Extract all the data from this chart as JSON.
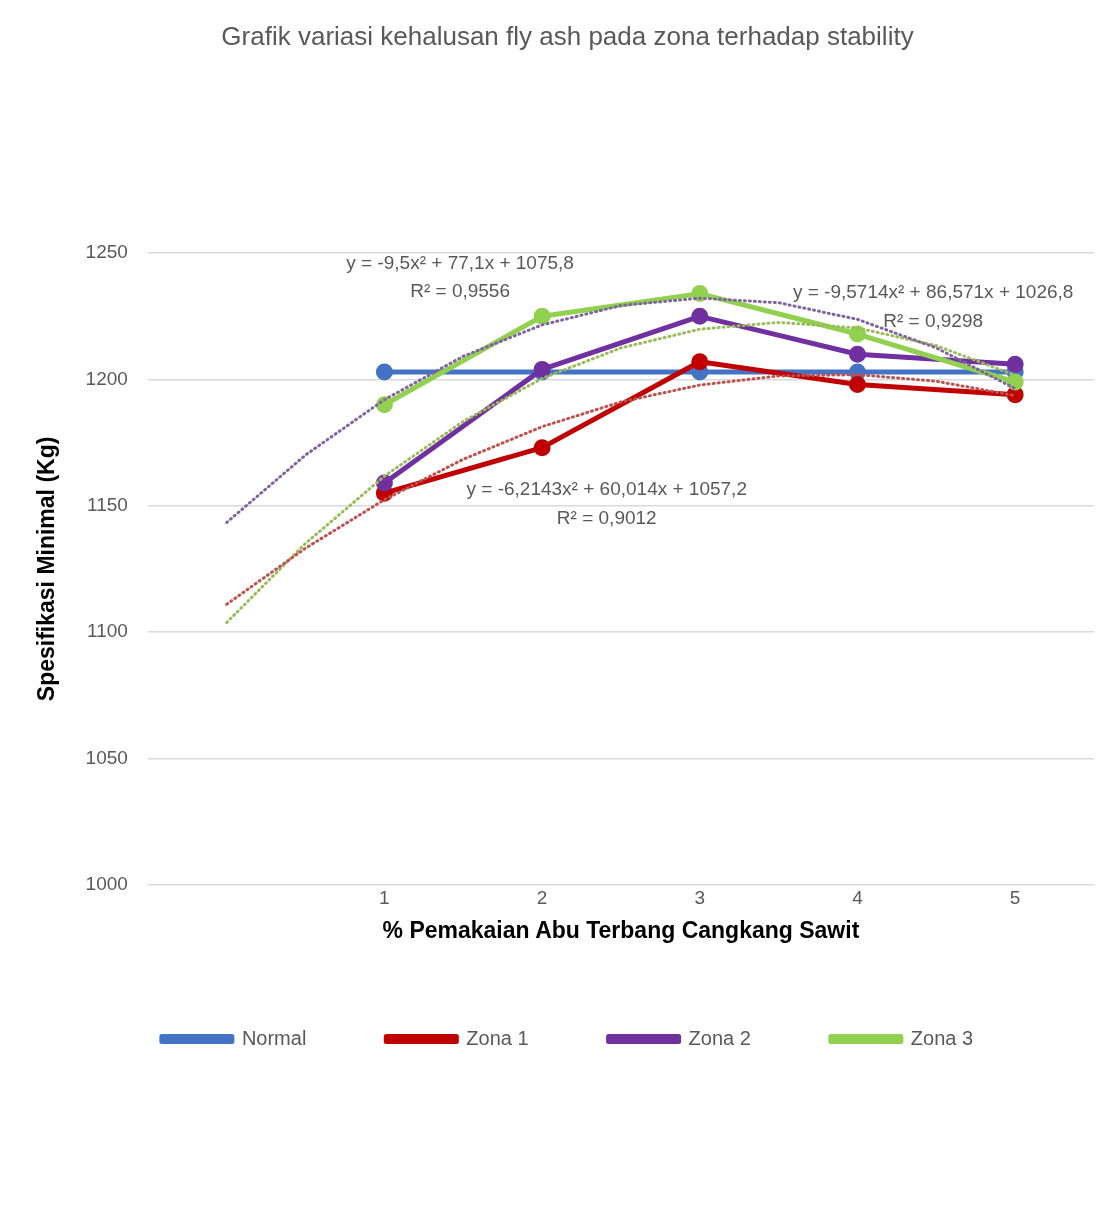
{
  "chart_data": {
    "type": "line",
    "title": "Grafik variasi kehalusan fly ash pada zona terhadap stability",
    "xlabel": "% Pemakaian Abu Terbang Cangkang Sawit",
    "ylabel": "Spesifikasi Minimal (Kg)",
    "xlim": [
      -0.5,
      5.5
    ],
    "xticks": [
      1,
      2,
      3,
      4,
      5
    ],
    "ylim": [
      1000,
      1250
    ],
    "yticks": [
      1000,
      1050,
      1100,
      1150,
      1200,
      1250
    ],
    "grid": "y",
    "legend": "bottom",
    "marker": "circle",
    "line_style": "solid",
    "series": [
      {
        "name": "Normal",
        "color": "#4472c4",
        "x": [
          1,
          2,
          3,
          4,
          5
        ],
        "values": [
          1203,
          1203,
          1203,
          1203,
          1203
        ]
      },
      {
        "name": "Zona 1",
        "color": "#c00000",
        "x": [
          1,
          2,
          3,
          4,
          5
        ],
        "values": [
          1155,
          1173,
          1207,
          1198,
          1194
        ]
      },
      {
        "name": "Zona 2",
        "color": "#7030a0",
        "x": [
          1,
          2,
          3,
          4,
          5
        ],
        "values": [
          1159,
          1204,
          1225,
          1210,
          1206
        ]
      },
      {
        "name": "Zona 3",
        "color": "#92d050",
        "x": [
          1,
          2,
          3,
          4,
          5
        ],
        "values": [
          1190,
          1225,
          1234,
          1218,
          1199
        ]
      },
      {
        "color": "#c0504d",
        "marker": "none",
        "line_style": "dotted",
        "x": [
          0,
          0.5,
          1,
          1.5,
          2,
          2.5,
          3,
          3.5,
          4,
          4.5,
          5
        ],
        "values": [
          1111.0,
          1133.2,
          1152.4,
          1168.4,
          1181.3,
          1191.1,
          1197.8,
          1201.4,
          1201.9,
          1199.3,
          1193.6
        ]
      },
      {
        "color": "#8064a2",
        "marker": "none",
        "line_style": "dotted",
        "x": [
          0,
          0.5,
          1,
          1.5,
          2,
          2.5,
          3,
          3.5,
          4,
          4.5,
          5
        ],
        "values": [
          1143.4,
          1170.1,
          1192.0,
          1209.2,
          1221.6,
          1229.3,
          1232.2,
          1230.4,
          1223.8,
          1212.5,
          1196.4
        ]
      },
      {
        "color": "#9bbb59",
        "marker": "none",
        "line_style": "dotted",
        "x": [
          0,
          0.5,
          1,
          1.5,
          2,
          2.5,
          3,
          3.5,
          4,
          4.5,
          5
        ],
        "values": [
          1103.8,
          1135.1,
          1161.7,
          1183.4,
          1200.4,
          1212.5,
          1219.9,
          1222.6,
          1220.4,
          1213.4,
          1201.7
        ]
      }
    ],
    "annotations": [
      "y = -9,5x² + 77,1x + 1075,8",
      "R² = 0,9556",
      "y = -9,5714x² + 86,571x + 1026,8",
      "R² = 0,9298",
      "y = -6,2143x² + 60,014x + 1057,2",
      "R² = 0,9012"
    ]
  }
}
